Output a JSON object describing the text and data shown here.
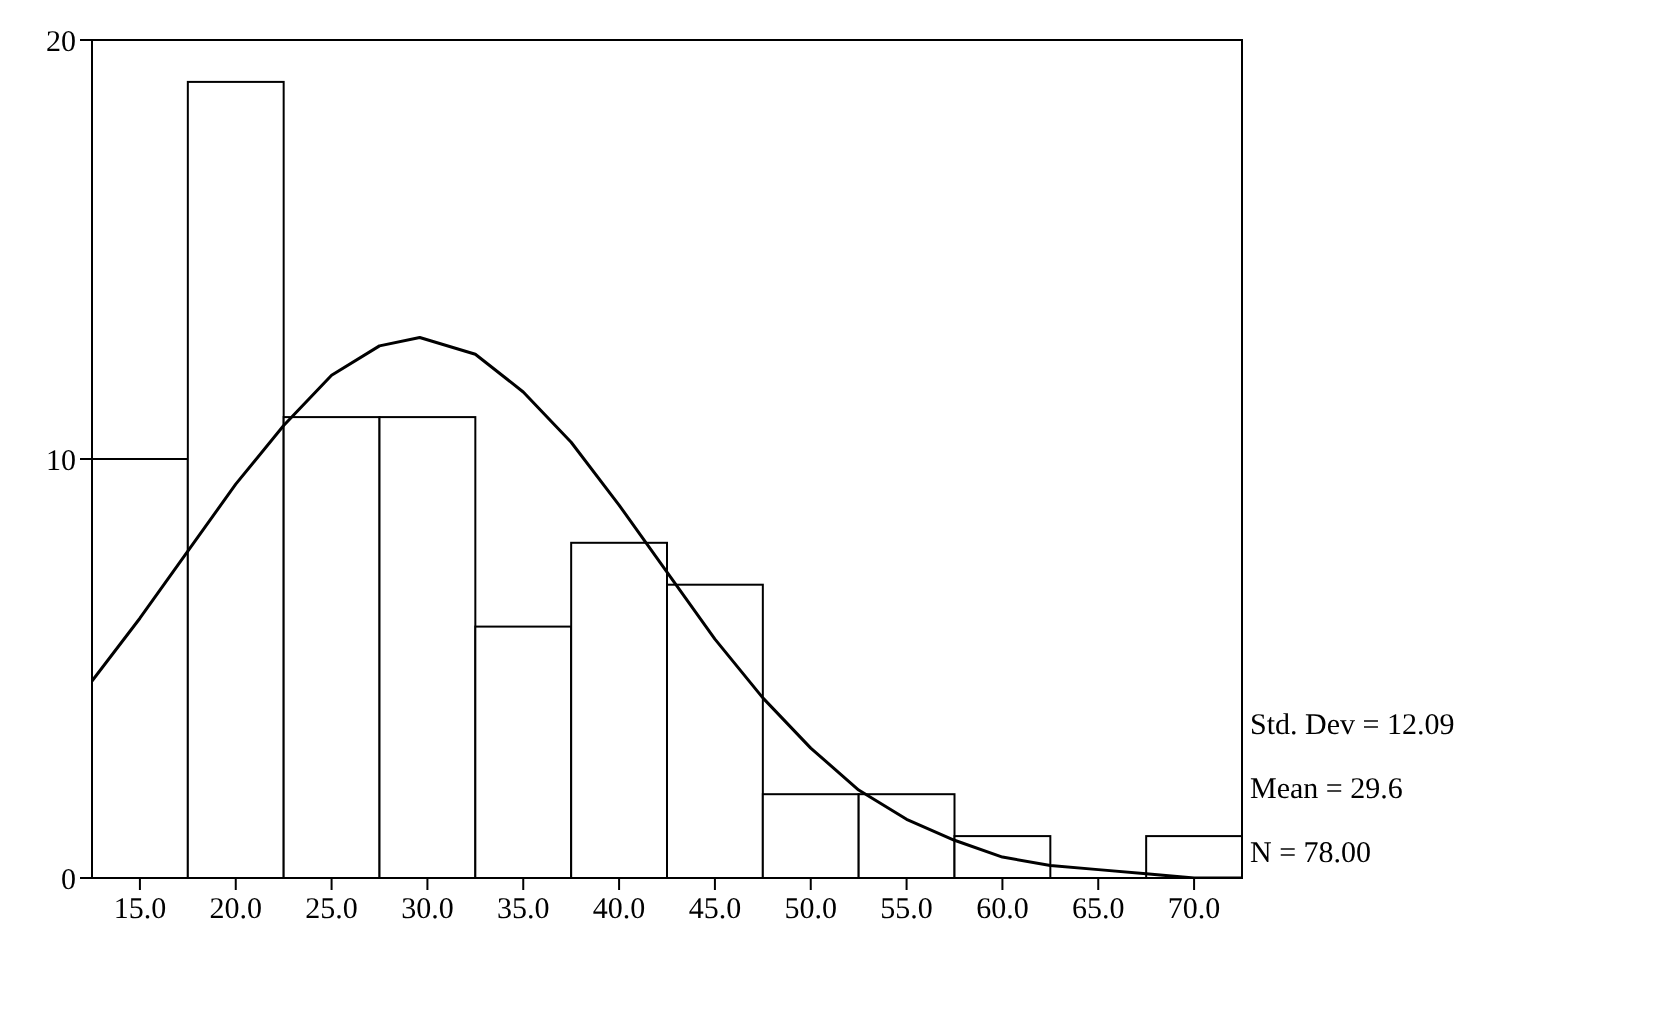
{
  "chart_data": {
    "type": "histogram",
    "bins": [
      12.5,
      17.5,
      22.5,
      27.5,
      32.5,
      37.5,
      42.5,
      47.5,
      52.5,
      57.5,
      62.5,
      67.5,
      72.5
    ],
    "values": [
      10,
      19,
      11,
      11,
      6,
      8,
      7,
      2,
      2,
      1,
      0,
      1
    ],
    "color": "#ffffff",
    "xlim": [
      12.5,
      72.5
    ],
    "xticks": [
      {
        "value": 15,
        "label": "15.0"
      },
      {
        "value": 20,
        "label": "20.0"
      },
      {
        "value": 25,
        "label": "25.0"
      },
      {
        "value": 30,
        "label": "30.0"
      },
      {
        "value": 35,
        "label": "35.0"
      },
      {
        "value": 40,
        "label": "40.0"
      },
      {
        "value": 45,
        "label": "45.0"
      },
      {
        "value": 50,
        "label": "50.0"
      },
      {
        "value": 55,
        "label": "55.0"
      },
      {
        "value": 60,
        "label": "60.0"
      },
      {
        "value": 65,
        "label": "65.0"
      },
      {
        "value": 70,
        "label": "70.0"
      }
    ],
    "ylim": [
      0,
      20
    ],
    "yticks": [
      0,
      10,
      20
    ],
    "series": [
      {
        "type": "line",
        "color": "#000000",
        "x": [
          12.5,
          15,
          17.5,
          20,
          22.5,
          25,
          27.5,
          29.6,
          32.5,
          35,
          37.5,
          40,
          42.5,
          45,
          47.5,
          50,
          52.5,
          55,
          57.5,
          60,
          62.5,
          65,
          67.5,
          70,
          72.5
        ],
        "values": [
          4.7,
          6.2,
          7.8,
          9.4,
          10.8,
          12.0,
          12.7,
          12.9,
          12.5,
          11.6,
          10.4,
          8.9,
          7.3,
          5.7,
          4.3,
          3.1,
          2.1,
          1.4,
          0.9,
          0.5,
          0.3,
          0.2,
          0.1,
          0.0,
          0.0
        ]
      }
    ],
    "annotations": [
      "Std. Dev = 12.09",
      "Mean = 29.6",
      "N = 78.00"
    ]
  }
}
